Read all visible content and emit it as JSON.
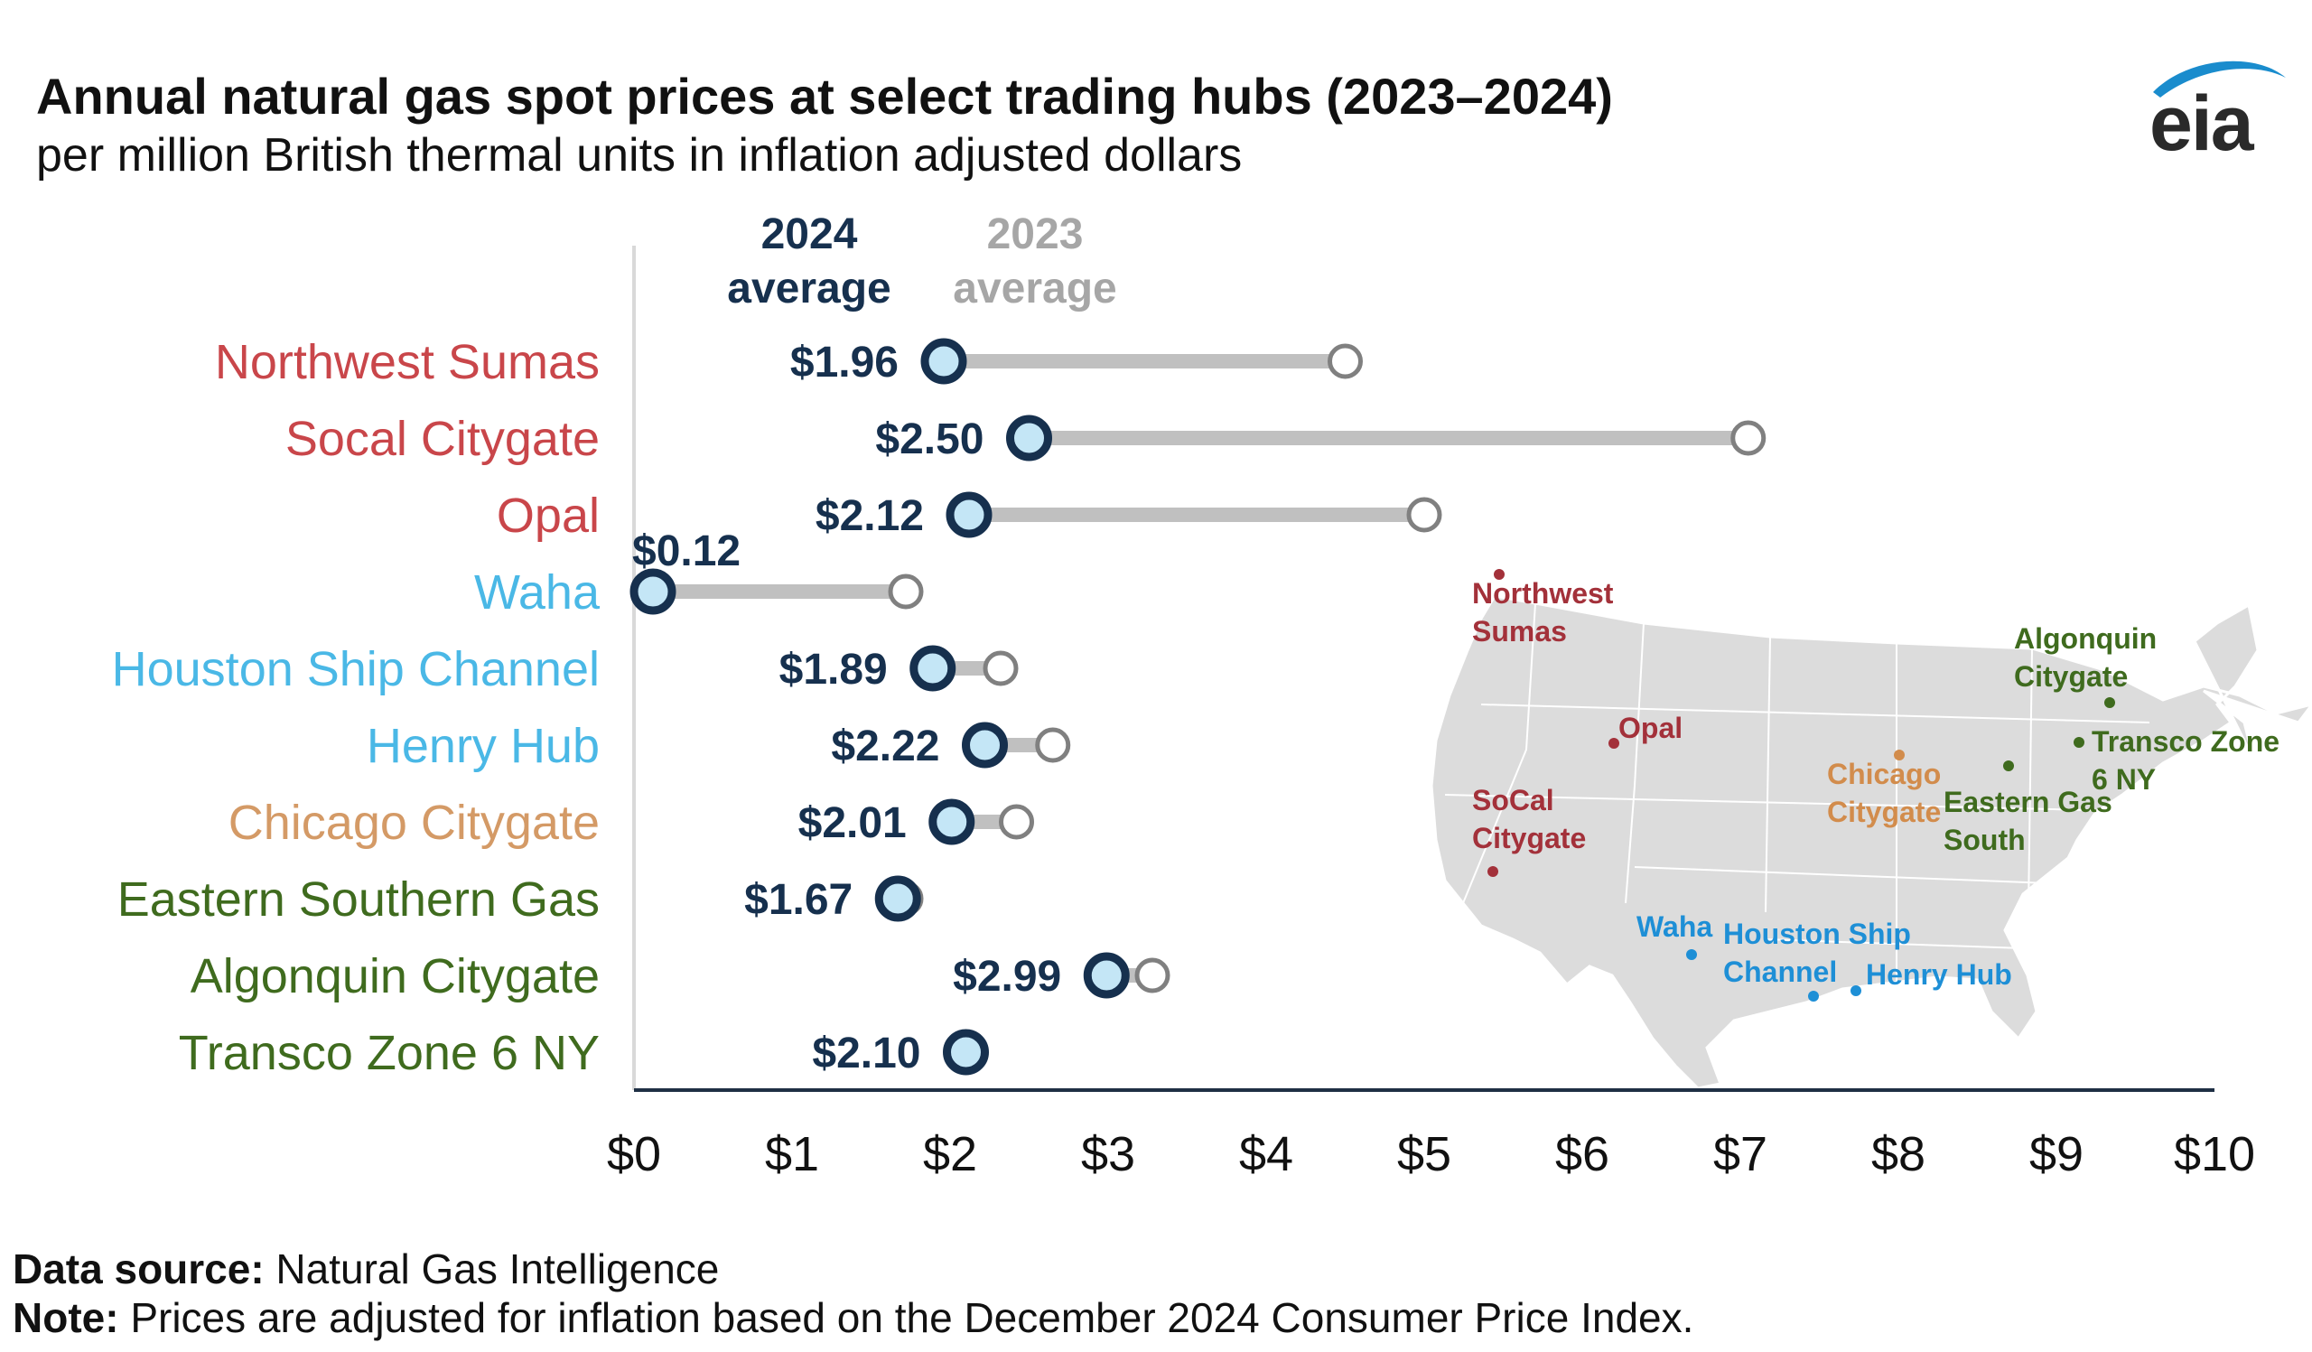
{
  "title": "Annual natural gas spot prices at select trading hubs (2023–2024)",
  "subtitle": "per million British thermal units in inflation adjusted dollars",
  "logo_text": "eia",
  "chart_data": {
    "type": "dumbbell",
    "orientation": "horizontal",
    "legend": {
      "series_2024": [
        "2024",
        "average"
      ],
      "series_2023": [
        "2023",
        "average"
      ],
      "placement": "top"
    },
    "series": [
      {
        "name": "2024 average",
        "color": "#16304e",
        "fill": "#c4e6f6"
      },
      {
        "name": "2023 average",
        "color": "#808080",
        "fill": "#ffffff"
      }
    ],
    "xlim": [
      0,
      10
    ],
    "x_ticks": [
      "$0",
      "$1",
      "$2",
      "$3",
      "$4",
      "$5",
      "$6",
      "$7",
      "$8",
      "$9",
      "$10"
    ],
    "grid": false,
    "hubs": [
      {
        "name": "Northwest Sumas",
        "color": "#c9464a",
        "v2024": 1.96,
        "v2023": 4.5,
        "label": "$1.96"
      },
      {
        "name": "Socal Citygate",
        "color": "#c9464a",
        "v2024": 2.5,
        "v2023": 7.05,
        "label": "$2.50"
      },
      {
        "name": "Opal",
        "color": "#c9464a",
        "v2024": 2.12,
        "v2023": 5.0,
        "label": "$2.12"
      },
      {
        "name": "Waha",
        "color": "#4ab8e6",
        "v2024": 0.12,
        "v2023": 1.72,
        "label": "$0.12"
      },
      {
        "name": "Houston Ship Channel",
        "color": "#4ab8e6",
        "v2024": 1.89,
        "v2023": 2.32,
        "label": "$1.89"
      },
      {
        "name": "Henry Hub",
        "color": "#4ab8e6",
        "v2024": 2.22,
        "v2023": 2.65,
        "label": "$2.22"
      },
      {
        "name": "Chicago Citygate",
        "color": "#d49a66",
        "v2024": 2.01,
        "v2023": 2.42,
        "label": "$2.01"
      },
      {
        "name": "Eastern Southern Gas",
        "color": "#3f6b1e",
        "v2024": 1.67,
        "v2023": 1.72,
        "label": "$1.67"
      },
      {
        "name": "Algonquin Citygate",
        "color": "#3f6b1e",
        "v2024": 2.99,
        "v2023": 3.28,
        "label": "$2.99"
      },
      {
        "name": "Transco Zone 6 NY",
        "color": "#3f6b1e",
        "v2024": 2.1,
        "v2023": 2.1,
        "label": "$2.10"
      }
    ],
    "map": {
      "labels": [
        {
          "lines": [
            "Northwest",
            "Sumas"
          ],
          "color": "#a3313a"
        },
        {
          "lines": [
            "Opal"
          ],
          "color": "#a3313a"
        },
        {
          "lines": [
            "SoCal",
            "Citygate"
          ],
          "color": "#a3313a"
        },
        {
          "lines": [
            "Chicago",
            "Citygate"
          ],
          "color": "#d28c4c"
        },
        {
          "lines": [
            "Algonquin",
            "Citygate"
          ],
          "color": "#3f6b1e"
        },
        {
          "lines": [
            "Transco Zone",
            "6 NY"
          ],
          "color": "#3f6b1e"
        },
        {
          "lines": [
            "Eastern Gas",
            "South"
          ],
          "color": "#3f6b1e"
        },
        {
          "lines": [
            "Waha"
          ],
          "color": "#1e8fd6"
        },
        {
          "lines": [
            "Houston Ship",
            "Channel"
          ],
          "color": "#1e8fd6"
        },
        {
          "lines": [
            "Henry Hub"
          ],
          "color": "#1e8fd6"
        }
      ]
    }
  },
  "footer": {
    "source_label": "Data source:",
    "source_text": " Natural Gas Intelligence",
    "note_label": "Note:",
    "note_text": " Prices are adjusted for inflation based on the December 2024 Consumer Price Index."
  }
}
